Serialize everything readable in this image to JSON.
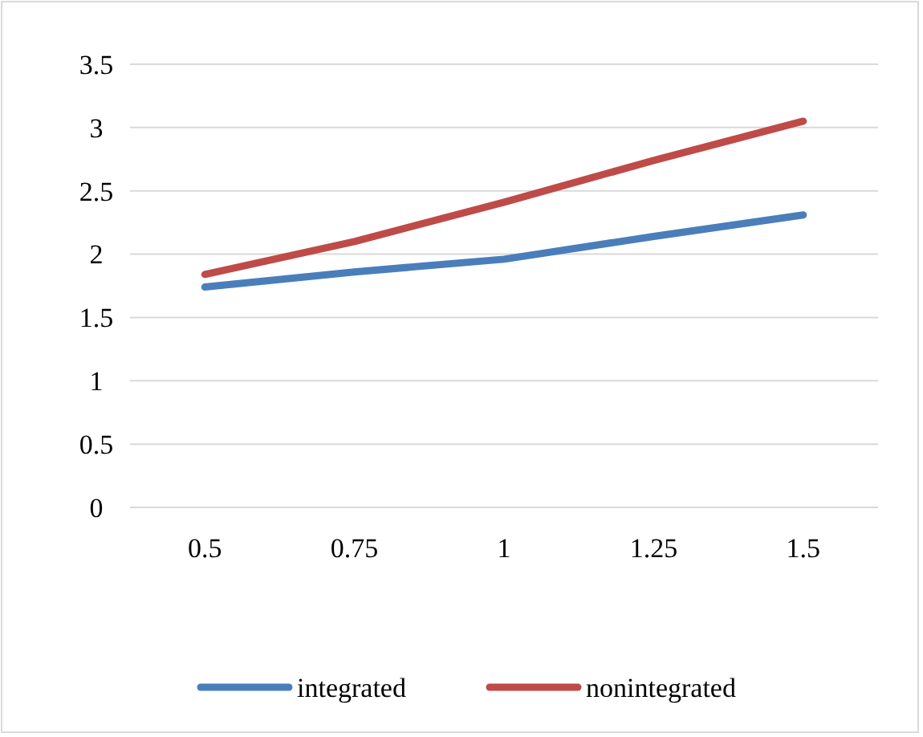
{
  "chart_data": {
    "type": "line",
    "categories": [
      "0.5",
      "0.75",
      "1",
      "1.25",
      "1.5"
    ],
    "series": [
      {
        "name": "integrated",
        "color": "#4a7ebb",
        "values": [
          1.74,
          1.86,
          1.96,
          2.14,
          2.31
        ]
      },
      {
        "name": "nonintegrated",
        "color": "#be4b48",
        "values": [
          1.84,
          2.1,
          2.41,
          2.74,
          3.05
        ]
      }
    ],
    "ylim": [
      0,
      3.5
    ],
    "yticks": [
      0,
      0.5,
      1,
      1.5,
      2,
      2.5,
      3,
      3.5
    ],
    "grid": "y",
    "legend": "bottom",
    "marker": "none",
    "line_style": "solid"
  }
}
